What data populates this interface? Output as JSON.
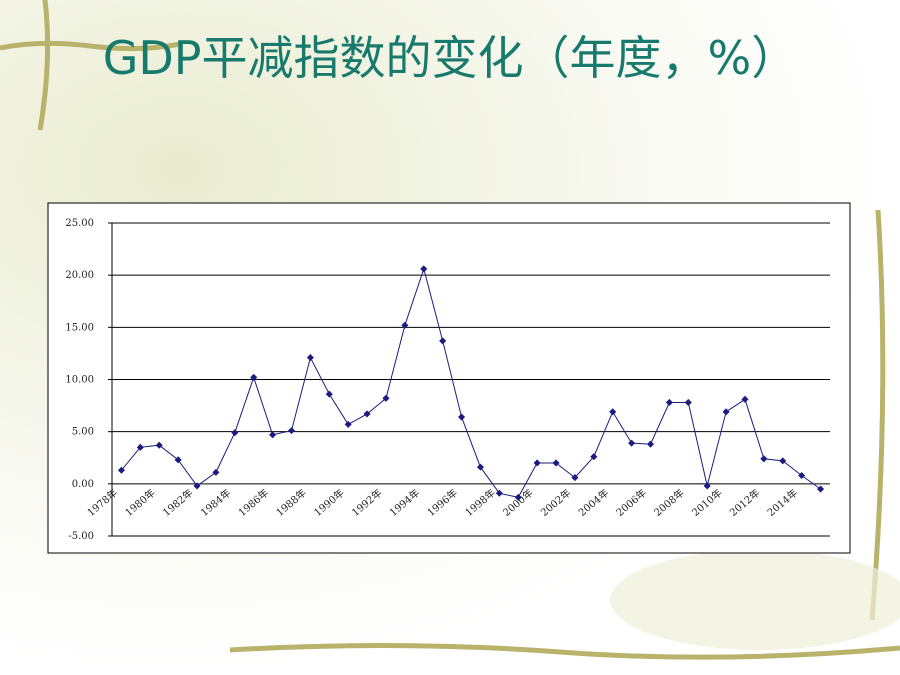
{
  "chart_data": {
    "type": "line",
    "title": "GDP平减指数的变化（年度，%）",
    "categories": [
      "1978年",
      null,
      "1980年",
      null,
      "1982年",
      null,
      "1984年",
      null,
      "1986年",
      null,
      "1988年",
      null,
      "1990年",
      null,
      "1992年",
      null,
      "1994年",
      null,
      "1996年",
      null,
      "1998年",
      null,
      "2000年",
      null,
      "2002年",
      null,
      "2004年",
      null,
      "2006年",
      null,
      "2008年",
      null,
      "2010年",
      null,
      "2012年",
      null,
      "2014年",
      null
    ],
    "values": [
      1.3,
      3.5,
      3.7,
      2.3,
      -0.2,
      1.1,
      4.9,
      10.2,
      4.7,
      5.1,
      12.1,
      8.6,
      5.7,
      6.7,
      8.2,
      15.2,
      20.6,
      13.7,
      6.4,
      1.6,
      -0.9,
      -1.3,
      2.0,
      2.0,
      0.6,
      2.6,
      6.9,
      3.9,
      3.8,
      7.8,
      7.8,
      -0.2,
      6.9,
      8.1,
      2.4,
      2.2,
      0.8,
      -0.5
    ],
    "color": "#1c1c80",
    "ylim": [
      -5,
      25
    ],
    "yticks": [
      {
        "value": -5,
        "label": "-5.00"
      },
      {
        "value": 0,
        "label": "0.00"
      },
      {
        "value": 5,
        "label": "5.00"
      },
      {
        "value": 10,
        "label": "10.00"
      },
      {
        "value": 15,
        "label": "15.00"
      },
      {
        "value": 20,
        "label": "20.00"
      },
      {
        "value": 25,
        "label": "25.00"
      }
    ],
    "grid": true
  }
}
